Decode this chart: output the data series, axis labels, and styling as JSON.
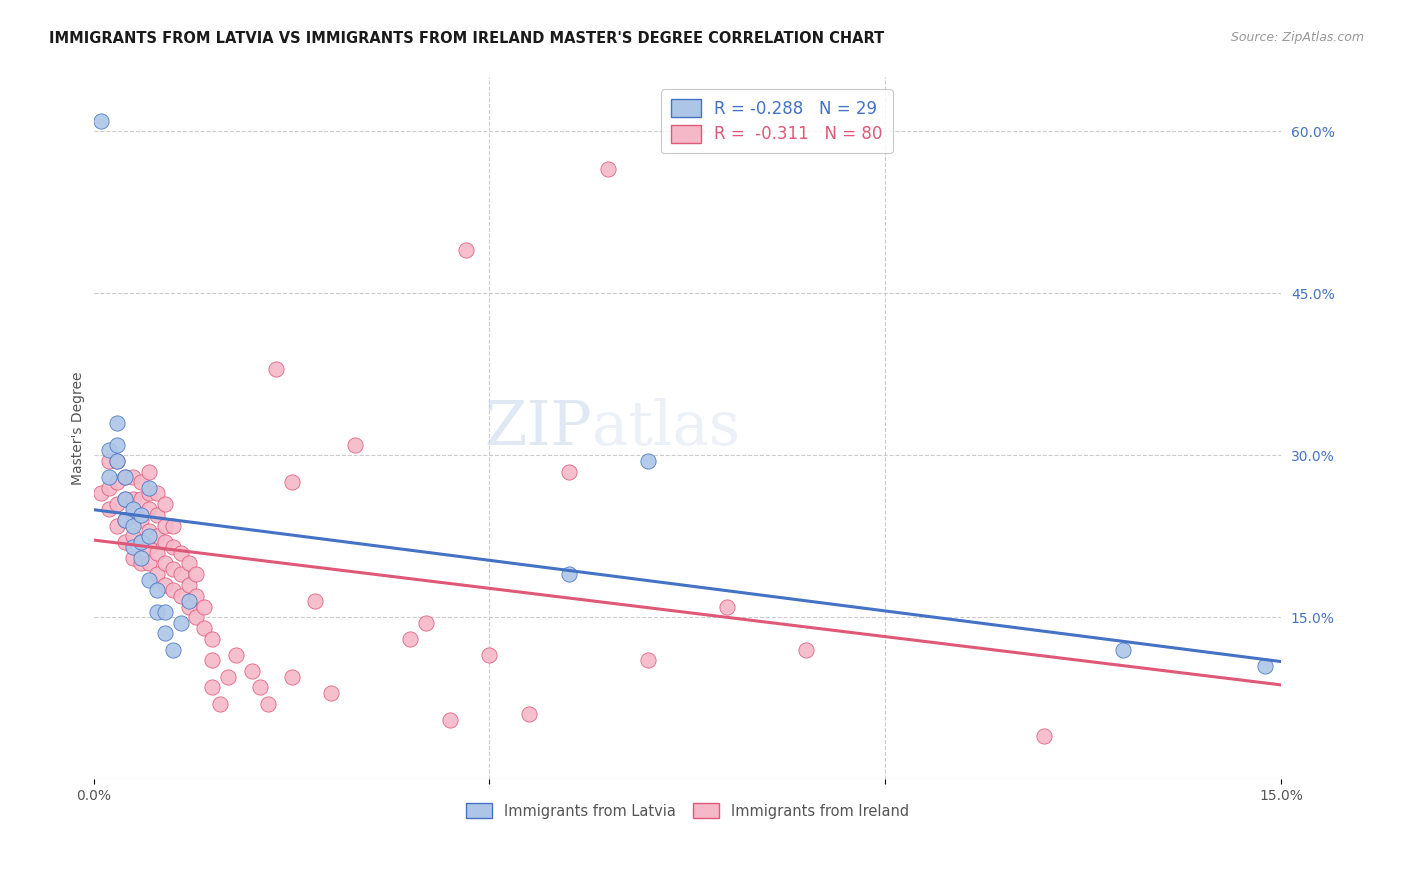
{
  "title": "IMMIGRANTS FROM LATVIA VS IMMIGRANTS FROM IRELAND MASTER'S DEGREE CORRELATION CHART",
  "source": "Source: ZipAtlas.com",
  "ylabel": "Master's Degree",
  "xlim": [
    0.0,
    0.15
  ],
  "ylim": [
    0.0,
    0.65
  ],
  "xticks": [
    0.0,
    0.05,
    0.1,
    0.15
  ],
  "xtick_labels": [
    "0.0%",
    "",
    "",
    "15.0%"
  ],
  "ytick_labels_right": [
    "15.0%",
    "30.0%",
    "45.0%",
    "60.0%"
  ],
  "yticks_right": [
    0.15,
    0.3,
    0.45,
    0.6
  ],
  "latvia_color": "#adc6e8",
  "ireland_color": "#f5b8c8",
  "latvia_line_color": "#4472c4",
  "ireland_line_color": "#e05878",
  "latvia_R": -0.288,
  "latvia_N": 29,
  "ireland_R": -0.311,
  "ireland_N": 80,
  "watermark_zip": "ZIP",
  "watermark_atlas": "atlas",
  "latvia_x": [
    0.001,
    0.002,
    0.002,
    0.003,
    0.003,
    0.003,
    0.004,
    0.004,
    0.004,
    0.005,
    0.005,
    0.005,
    0.006,
    0.006,
    0.006,
    0.007,
    0.007,
    0.007,
    0.008,
    0.008,
    0.009,
    0.009,
    0.01,
    0.011,
    0.012,
    0.06,
    0.07,
    0.13,
    0.148
  ],
  "latvia_y": [
    0.61,
    0.28,
    0.305,
    0.295,
    0.31,
    0.33,
    0.24,
    0.26,
    0.28,
    0.215,
    0.235,
    0.25,
    0.205,
    0.22,
    0.245,
    0.185,
    0.225,
    0.27,
    0.155,
    0.175,
    0.135,
    0.155,
    0.12,
    0.145,
    0.165,
    0.19,
    0.295,
    0.12,
    0.105
  ],
  "ireland_x": [
    0.001,
    0.002,
    0.002,
    0.002,
    0.003,
    0.003,
    0.003,
    0.003,
    0.004,
    0.004,
    0.004,
    0.004,
    0.005,
    0.005,
    0.005,
    0.005,
    0.005,
    0.006,
    0.006,
    0.006,
    0.006,
    0.006,
    0.007,
    0.007,
    0.007,
    0.007,
    0.007,
    0.007,
    0.008,
    0.008,
    0.008,
    0.008,
    0.008,
    0.009,
    0.009,
    0.009,
    0.009,
    0.009,
    0.01,
    0.01,
    0.01,
    0.01,
    0.011,
    0.011,
    0.011,
    0.012,
    0.012,
    0.012,
    0.013,
    0.013,
    0.013,
    0.014,
    0.014,
    0.015,
    0.015,
    0.015,
    0.016,
    0.017,
    0.018,
    0.02,
    0.021,
    0.022,
    0.023,
    0.025,
    0.025,
    0.028,
    0.03,
    0.033,
    0.04,
    0.042,
    0.045,
    0.047,
    0.05,
    0.055,
    0.06,
    0.065,
    0.07,
    0.08,
    0.09,
    0.12
  ],
  "ireland_y": [
    0.265,
    0.25,
    0.27,
    0.295,
    0.235,
    0.255,
    0.275,
    0.295,
    0.22,
    0.24,
    0.26,
    0.28,
    0.205,
    0.225,
    0.245,
    0.26,
    0.28,
    0.2,
    0.22,
    0.24,
    0.26,
    0.275,
    0.2,
    0.215,
    0.23,
    0.25,
    0.265,
    0.285,
    0.19,
    0.21,
    0.225,
    0.245,
    0.265,
    0.18,
    0.2,
    0.22,
    0.235,
    0.255,
    0.175,
    0.195,
    0.215,
    0.235,
    0.17,
    0.19,
    0.21,
    0.16,
    0.18,
    0.2,
    0.15,
    0.17,
    0.19,
    0.14,
    0.16,
    0.085,
    0.11,
    0.13,
    0.07,
    0.095,
    0.115,
    0.1,
    0.085,
    0.07,
    0.38,
    0.095,
    0.275,
    0.165,
    0.08,
    0.31,
    0.13,
    0.145,
    0.055,
    0.49,
    0.115,
    0.06,
    0.285,
    0.565,
    0.11,
    0.16,
    0.12,
    0.04
  ],
  "title_fontsize": 10.5,
  "source_fontsize": 9,
  "axis_label_fontsize": 10,
  "tick_fontsize": 10,
  "background_color": "#ffffff",
  "grid_color": "#cccccc"
}
